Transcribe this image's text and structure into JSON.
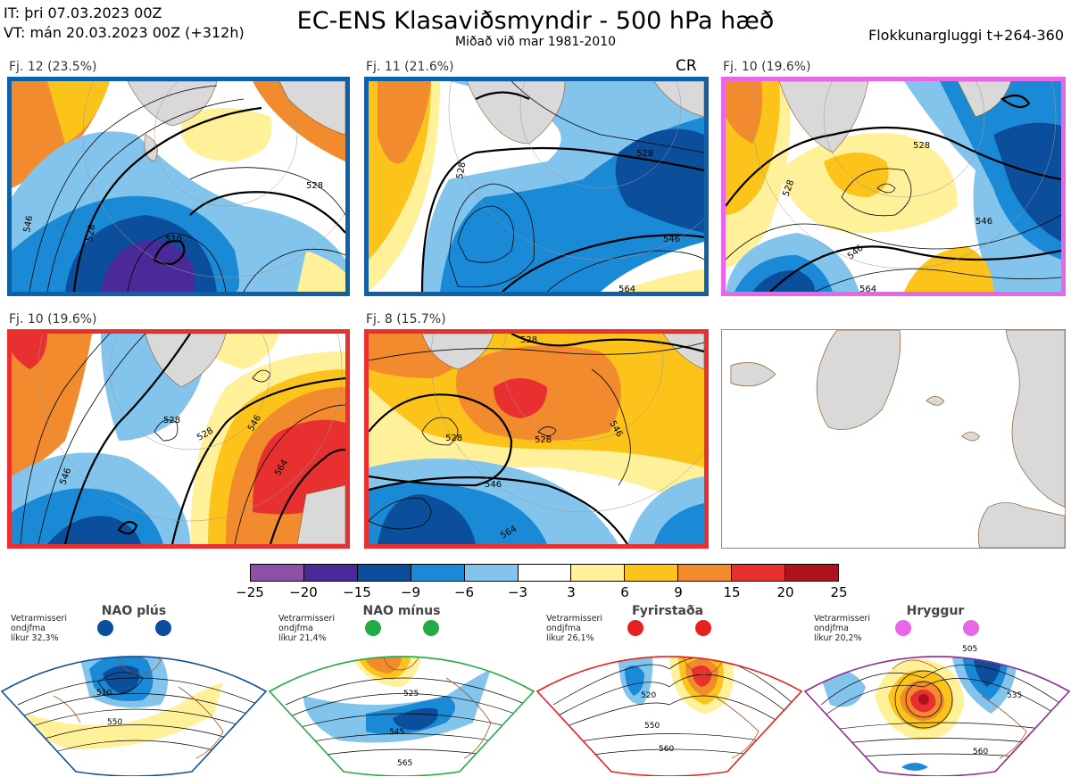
{
  "header": {
    "init_time": "IT: þri 07.03.2023 00Z",
    "valid_time": "VT: mán 20.03.2023 00Z  (+312h)",
    "title": "EC-ENS Klasaviðsmyndir - 500 hPa hæð",
    "subtitle": "Miðað við mar 1981-2010",
    "window": "Flokkunargluggi t+264-360"
  },
  "clusters": [
    {
      "label": "Fj. 12 (23.5%)",
      "regime": "NAO plús",
      "frame_color": "#1060a8"
    },
    {
      "label": "Fj. 11 (21.6%)",
      "regime": "NAO plús",
      "frame_color": "#1060a8",
      "tag": "CR"
    },
    {
      "label": "Fj. 10 (19.6%)",
      "regime": "Hryggur",
      "frame_color": "#e066e0"
    },
    {
      "label": "Fj. 10 (19.6%)",
      "regime": "Fyrirstaða",
      "frame_color": "#e83030"
    },
    {
      "label": "Fj. 8 (15.7%)",
      "regime": "Fyrirstaða",
      "frame_color": "#e83030"
    }
  ],
  "colorbar": {
    "ticks": [
      "−25",
      "−20",
      "−15",
      "−9",
      "−6",
      "−3",
      "3",
      "6",
      "9",
      "15",
      "20",
      "25"
    ],
    "colors": [
      "#8e4fa6",
      "#4a2a98",
      "#0b4f9c",
      "#1a8ad6",
      "#82c4ec",
      "#ffffff",
      "#fff09a",
      "#fcc41a",
      "#f28a2e",
      "#e83030",
      "#b0121c"
    ]
  },
  "regimes": [
    {
      "name": "NAO plús",
      "note": [
        "Vetrarmisseri",
        "ondjfma",
        "líkur 32,3%"
      ],
      "color": "#0b4f9c",
      "contours": [
        "510",
        "550"
      ]
    },
    {
      "name": "NAO mínus",
      "note": [
        "Vetrarmisseri",
        "ondjfma",
        "líkur 21,4%"
      ],
      "color": "#22aa44",
      "contours": [
        "525",
        "545",
        "565"
      ]
    },
    {
      "name": "Fyrirstaða",
      "note": [
        "Vetrarmisseri",
        "ondjfma",
        "líkur 26,1%"
      ],
      "color": "#e82020",
      "contours": [
        "520",
        "550",
        "560"
      ]
    },
    {
      "name": "Hryggur",
      "note": [
        "Vetrarmisseri",
        "ondjfma",
        "líkur 20,2%"
      ],
      "color": "#e866e8",
      "contours": [
        "505",
        "535",
        "560"
      ]
    }
  ],
  "map_contour_labels": {
    "p1": [
      "510",
      "528",
      "546",
      "564",
      "510",
      "528",
      "546"
    ],
    "p2": [
      "528",
      "546",
      "564",
      "528"
    ],
    "p3": [
      "528",
      "546",
      "564",
      "528",
      "546"
    ],
    "p4": [
      "528",
      "546",
      "564",
      "546",
      "528"
    ],
    "p5": [
      "528",
      "546",
      "564",
      "528",
      "546"
    ]
  }
}
